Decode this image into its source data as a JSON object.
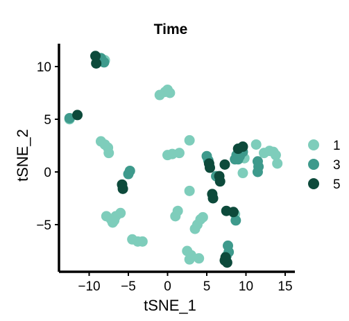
{
  "chart_data": {
    "type": "scatter",
    "title": "Time",
    "xlabel": "tSNE_1",
    "ylabel": "tSNE_2",
    "xlim": [
      -14,
      16
    ],
    "ylim": [
      -9,
      12
    ],
    "x_ticks": [
      -10,
      -5,
      0,
      5,
      10,
      15
    ],
    "y_ticks": [
      10,
      5,
      0,
      -5
    ],
    "x_tick_labels": [
      "−10",
      "−5",
      "0",
      "5",
      "10",
      "15"
    ],
    "y_tick_labels": [
      "10",
      "5",
      "0",
      "−5"
    ],
    "legend_position": "right",
    "grid": false,
    "series": [
      {
        "name": "1",
        "color": "#7ecdbb",
        "points": [
          [
            -8,
            10.6
          ],
          [
            -8.5,
            10.6
          ],
          [
            0,
            7.8
          ],
          [
            -0.3,
            7.6
          ],
          [
            0.3,
            7.5
          ],
          [
            -1,
            7.3
          ],
          [
            -12.5,
            5.0
          ],
          [
            -8.5,
            2.9
          ],
          [
            -8,
            2.6
          ],
          [
            -7.6,
            2.3
          ],
          [
            -7.5,
            1.8
          ],
          [
            0,
            1.6
          ],
          [
            0.6,
            1.7
          ],
          [
            1.5,
            1.8
          ],
          [
            2.8,
            3.0
          ],
          [
            9.8,
            1.3
          ],
          [
            9.6,
            -0.1
          ],
          [
            11.3,
            2.6
          ],
          [
            12.3,
            1.8
          ],
          [
            13,
            2.0
          ],
          [
            13.5,
            1.9
          ],
          [
            13.8,
            1.6
          ],
          [
            14,
            0.8
          ],
          [
            2.8,
            -1.8
          ],
          [
            -7.8,
            -4.2
          ],
          [
            -7.2,
            -4.5
          ],
          [
            -6.6,
            -4.2
          ],
          [
            -6,
            -3.9
          ],
          [
            -7,
            -4.8
          ],
          [
            -6.8,
            -4.6
          ],
          [
            1.3,
            -3.7
          ],
          [
            1,
            -4.2
          ],
          [
            4.2,
            -4.5
          ],
          [
            4.5,
            -4.3
          ],
          [
            3.8,
            -5.0
          ],
          [
            3.5,
            -5.4
          ],
          [
            -4.5,
            -6.4
          ],
          [
            -3.8,
            -6.6
          ],
          [
            -3.2,
            -6.6
          ],
          [
            2.5,
            -7.5
          ],
          [
            3,
            -7.9
          ],
          [
            4,
            -8.2
          ],
          [
            2.8,
            -8.3
          ],
          [
            8.6,
            -4.0
          ]
        ]
      },
      {
        "name": "3",
        "color": "#3e9a8c",
        "points": [
          [
            -8.5,
            10.8
          ],
          [
            -8.1,
            10.4
          ],
          [
            -12.5,
            5.1
          ],
          [
            -5,
            -0.2
          ],
          [
            -4.8,
            0.1
          ],
          [
            5,
            1.5
          ],
          [
            5.2,
            1.1
          ],
          [
            8.6,
            1.2
          ],
          [
            9.2,
            1.5
          ],
          [
            9.6,
            1.9
          ],
          [
            8.8,
            1.6
          ],
          [
            9.0,
            1.2
          ],
          [
            11.5,
            1.0
          ],
          [
            11.6,
            0.5
          ],
          [
            11.5,
            0.0
          ],
          [
            6.2,
            -0.4
          ],
          [
            8.7,
            -4.6
          ],
          [
            7.7,
            -7.0
          ],
          [
            7.8,
            -7.6
          ],
          [
            7.5,
            -8.0
          ]
        ]
      },
      {
        "name": "5",
        "color": "#0d4a3b",
        "points": [
          [
            -9.2,
            11.0
          ],
          [
            -9.1,
            10.3
          ],
          [
            -11.5,
            5.4
          ],
          [
            -5.8,
            -1.2
          ],
          [
            -5.7,
            -1.6
          ],
          [
            5.3,
            0.8
          ],
          [
            5.4,
            0.4
          ],
          [
            6.6,
            -0.4
          ],
          [
            6.7,
            -0.9
          ],
          [
            7.3,
            0.7
          ],
          [
            9,
            2.2
          ],
          [
            9.6,
            2.4
          ],
          [
            5.7,
            -2.1
          ],
          [
            5.8,
            -2.5
          ],
          [
            7.5,
            -3.7
          ],
          [
            8.4,
            -3.8
          ],
          [
            7.3,
            -8.4
          ],
          [
            7.6,
            -8.6
          ],
          [
            7.4,
            -8.1
          ]
        ]
      }
    ]
  }
}
